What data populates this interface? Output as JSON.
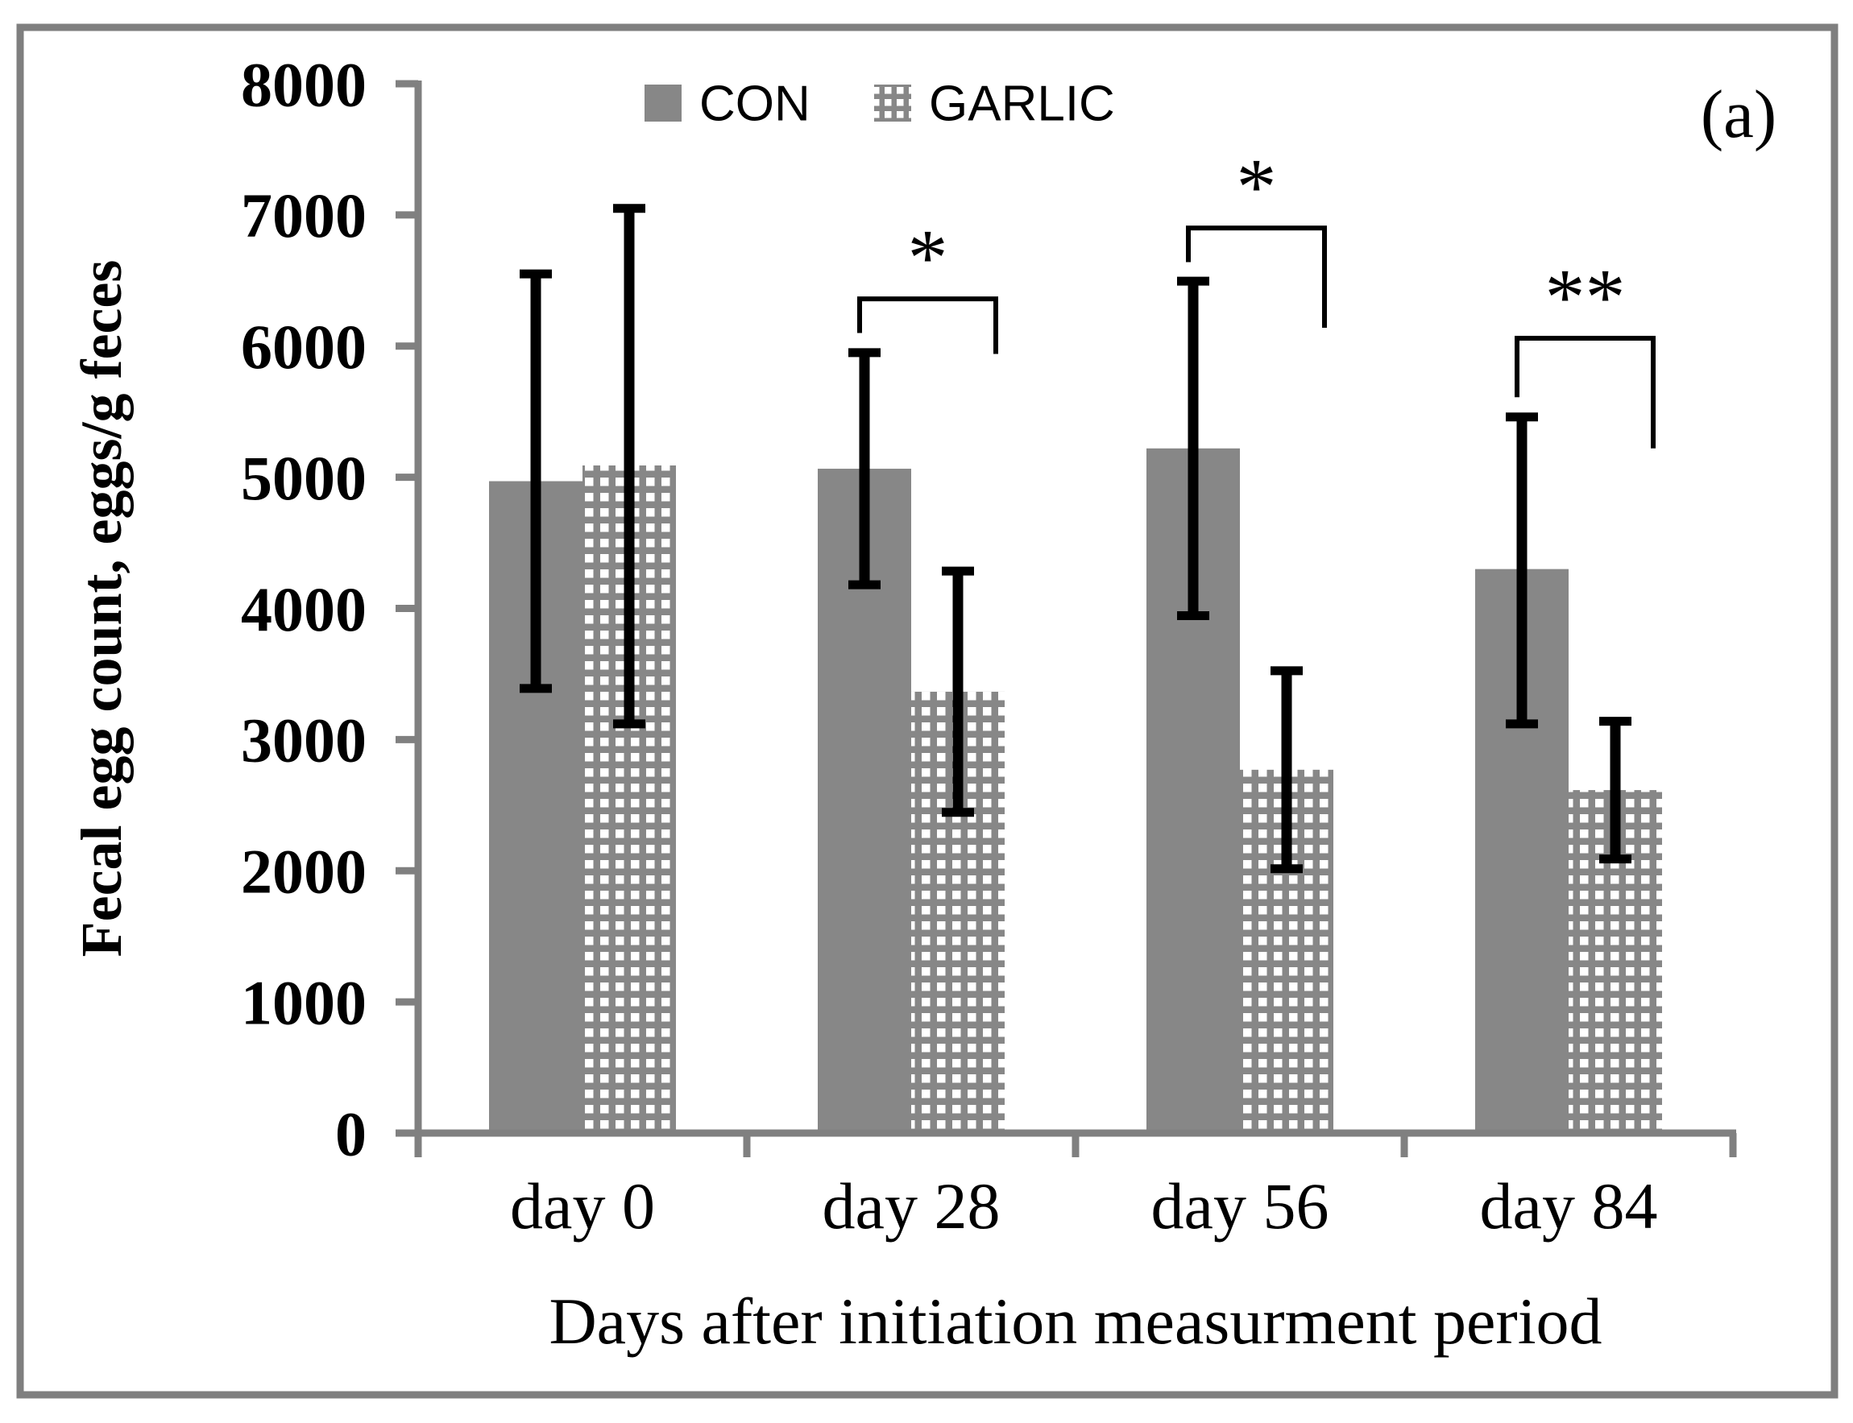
{
  "chart_data": {
    "type": "bar",
    "panel_label": "(a)",
    "xlabel": "Days after initiation measurment period",
    "ylabel": "Fecal egg count, eggs/g feces",
    "categories": [
      "day 0",
      "day 28",
      "day 56",
      "day 84"
    ],
    "ylim": [
      0,
      8000
    ],
    "ytick_step": 1000,
    "ytick_labels": [
      "0",
      "1000",
      "2000",
      "3000",
      "4000",
      "5000",
      "6000",
      "7000",
      "8000"
    ],
    "grid": false,
    "legend_position": "top-center",
    "series": [
      {
        "name": "CON",
        "fill": "solid",
        "values": [
          4970,
          5065,
          5220,
          4300
        ],
        "err_high": [
          6550,
          5950,
          6495,
          5460
        ],
        "err_low": [
          3390,
          4180,
          3945,
          3120
        ]
      },
      {
        "name": "GARLIC",
        "fill": "dotted-grid-pattern",
        "values": [
          5090,
          3365,
          2770,
          2615
        ],
        "err_high": [
          7050,
          4285,
          3525,
          3140
        ],
        "err_low": [
          3120,
          2445,
          2015,
          2090
        ]
      }
    ],
    "significance": [
      {
        "category": "day 28",
        "group_index": 1,
        "label": "*",
        "line": 6360,
        "left_end": 6100,
        "right_end": 5940
      },
      {
        "category": "day 56",
        "group_index": 2,
        "label": "*",
        "line": 6900,
        "left_end": 6640,
        "right_end": 6140
      },
      {
        "category": "day 84",
        "group_index": 3,
        "label": "**",
        "line": 6060,
        "left_end": 5610,
        "right_end": 5220
      }
    ],
    "colors": {
      "bar": "#878787",
      "axis": "#808080",
      "error_bar": "#000000",
      "text": "#000000",
      "frame": "#7f7f7f",
      "pattern_dot": "#ffffff"
    }
  }
}
